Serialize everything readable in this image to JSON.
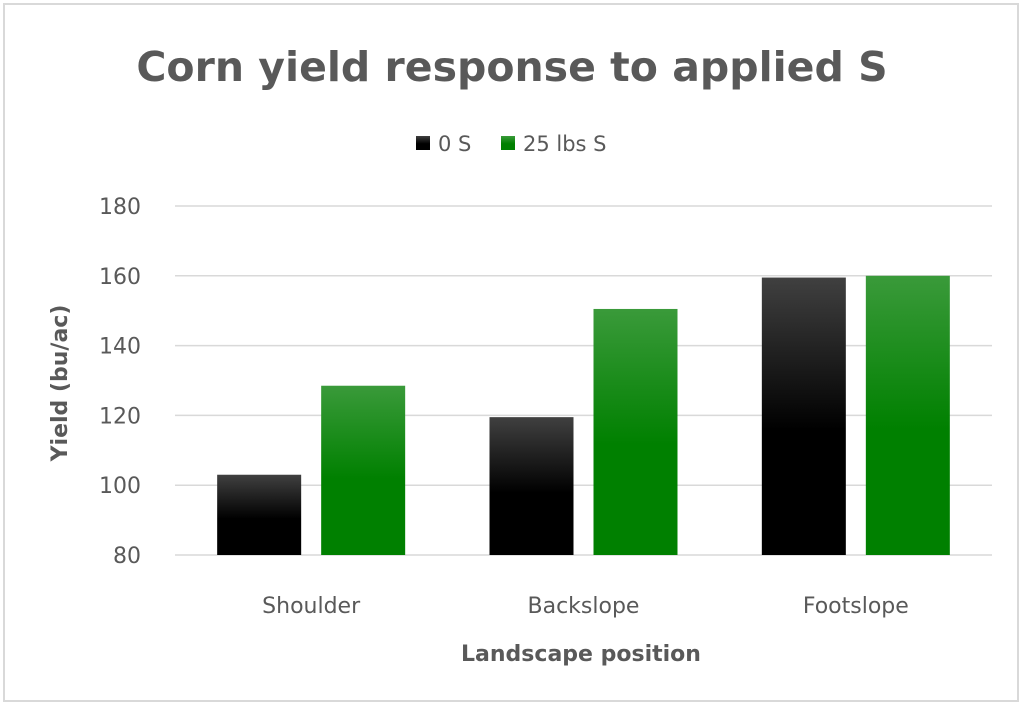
{
  "chart_data": {
    "type": "bar",
    "title": "Corn yield response to applied S",
    "xlabel": "Landscape position",
    "ylabel": "Yield (bu/ac)",
    "ylim": [
      80,
      180
    ],
    "yticks": [
      80,
      100,
      120,
      140,
      160,
      180
    ],
    "grid": true,
    "legend_position": "top",
    "categories": [
      "Shoulder",
      "Backslope",
      "Footslope"
    ],
    "series": [
      {
        "name": "0 S",
        "values": [
          103,
          119.5,
          159.5
        ],
        "color": "#000000",
        "color_top": "#404040"
      },
      {
        "name": "25 lbs S",
        "values": [
          128.5,
          150.5,
          160
        ],
        "color": "#008000",
        "color_top": "#3a9a3a"
      }
    ]
  }
}
